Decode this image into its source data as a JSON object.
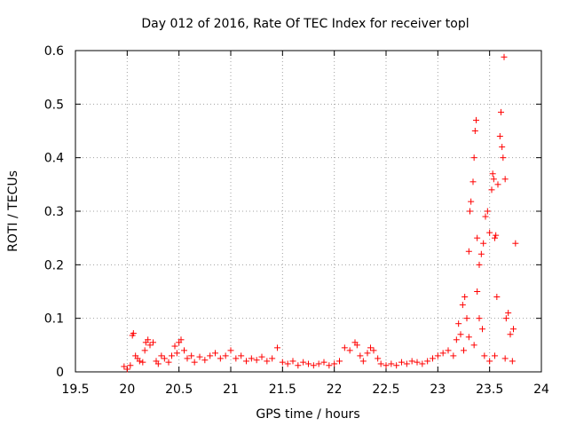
{
  "chart_data": {
    "type": "scatter",
    "title": "Day 012 of 2016, Rate Of TEC Index for receiver topl",
    "xlabel": "GPS time / hours",
    "ylabel": "ROTI / TECUs",
    "xlim": [
      19.5,
      24
    ],
    "ylim": [
      0,
      0.6
    ],
    "xticks": [
      19.5,
      20,
      20.5,
      21,
      21.5,
      22,
      22.5,
      23,
      23.5,
      24
    ],
    "yticks": [
      0,
      0.1,
      0.2,
      0.3,
      0.4,
      0.5,
      0.6
    ],
    "xtick_labels": [
      "19.5",
      "20",
      "20.5",
      "21",
      "21.5",
      "22",
      "22.5",
      "23",
      "23.5",
      "24"
    ],
    "ytick_labels": [
      "0",
      "0.1",
      "0.2",
      "0.3",
      "0.4",
      "0.5",
      "0.6"
    ],
    "grid": true,
    "marker": "+",
    "color": "#ff0000",
    "series": [
      {
        "name": "ROTI",
        "points": [
          [
            19.97,
            0.01
          ],
          [
            20.0,
            0.005
          ],
          [
            20.03,
            0.012
          ],
          [
            20.05,
            0.068
          ],
          [
            20.06,
            0.072
          ],
          [
            20.08,
            0.03
          ],
          [
            20.1,
            0.025
          ],
          [
            20.12,
            0.02
          ],
          [
            20.15,
            0.018
          ],
          [
            20.17,
            0.04
          ],
          [
            20.18,
            0.055
          ],
          [
            20.2,
            0.06
          ],
          [
            20.22,
            0.05
          ],
          [
            20.25,
            0.055
          ],
          [
            20.28,
            0.02
          ],
          [
            20.3,
            0.015
          ],
          [
            20.33,
            0.03
          ],
          [
            20.36,
            0.025
          ],
          [
            20.4,
            0.018
          ],
          [
            20.43,
            0.03
          ],
          [
            20.46,
            0.048
          ],
          [
            20.48,
            0.035
          ],
          [
            20.5,
            0.055
          ],
          [
            20.52,
            0.06
          ],
          [
            20.55,
            0.04
          ],
          [
            20.58,
            0.025
          ],
          [
            20.62,
            0.03
          ],
          [
            20.65,
            0.018
          ],
          [
            20.7,
            0.028
          ],
          [
            20.75,
            0.022
          ],
          [
            20.8,
            0.03
          ],
          [
            20.85,
            0.035
          ],
          [
            20.9,
            0.025
          ],
          [
            20.95,
            0.03
          ],
          [
            21.0,
            0.04
          ],
          [
            21.05,
            0.025
          ],
          [
            21.1,
            0.03
          ],
          [
            21.15,
            0.02
          ],
          [
            21.2,
            0.025
          ],
          [
            21.25,
            0.022
          ],
          [
            21.3,
            0.028
          ],
          [
            21.35,
            0.02
          ],
          [
            21.4,
            0.025
          ],
          [
            21.45,
            0.045
          ],
          [
            21.5,
            0.018
          ],
          [
            21.55,
            0.015
          ],
          [
            21.6,
            0.02
          ],
          [
            21.65,
            0.012
          ],
          [
            21.7,
            0.018
          ],
          [
            21.75,
            0.015
          ],
          [
            21.8,
            0.012
          ],
          [
            21.85,
            0.015
          ],
          [
            21.9,
            0.018
          ],
          [
            21.95,
            0.012
          ],
          [
            22.0,
            0.015
          ],
          [
            22.05,
            0.02
          ],
          [
            22.1,
            0.045
          ],
          [
            22.15,
            0.04
          ],
          [
            22.2,
            0.055
          ],
          [
            22.22,
            0.05
          ],
          [
            22.25,
            0.03
          ],
          [
            22.28,
            0.02
          ],
          [
            22.32,
            0.035
          ],
          [
            22.35,
            0.045
          ],
          [
            22.38,
            0.04
          ],
          [
            22.42,
            0.025
          ],
          [
            22.45,
            0.015
          ],
          [
            22.5,
            0.012
          ],
          [
            22.55,
            0.015
          ],
          [
            22.6,
            0.012
          ],
          [
            22.65,
            0.018
          ],
          [
            22.7,
            0.015
          ],
          [
            22.75,
            0.02
          ],
          [
            22.8,
            0.018
          ],
          [
            22.85,
            0.015
          ],
          [
            22.9,
            0.02
          ],
          [
            22.95,
            0.025
          ],
          [
            23.0,
            0.03
          ],
          [
            23.05,
            0.035
          ],
          [
            23.1,
            0.04
          ],
          [
            23.15,
            0.03
          ],
          [
            23.18,
            0.06
          ],
          [
            23.2,
            0.09
          ],
          [
            23.22,
            0.07
          ],
          [
            23.24,
            0.125
          ],
          [
            23.26,
            0.14
          ],
          [
            23.28,
            0.1
          ],
          [
            23.3,
            0.225
          ],
          [
            23.31,
            0.3
          ],
          [
            23.32,
            0.318
          ],
          [
            23.34,
            0.355
          ],
          [
            23.35,
            0.4
          ],
          [
            23.36,
            0.45
          ],
          [
            23.37,
            0.47
          ],
          [
            23.38,
            0.25
          ],
          [
            23.4,
            0.2
          ],
          [
            23.42,
            0.22
          ],
          [
            23.44,
            0.24
          ],
          [
            23.46,
            0.29
          ],
          [
            23.48,
            0.3
          ],
          [
            23.5,
            0.26
          ],
          [
            23.52,
            0.34
          ],
          [
            23.53,
            0.37
          ],
          [
            23.54,
            0.36
          ],
          [
            23.55,
            0.25
          ],
          [
            23.57,
            0.14
          ],
          [
            23.58,
            0.35
          ],
          [
            23.6,
            0.44
          ],
          [
            23.61,
            0.485
          ],
          [
            23.62,
            0.42
          ],
          [
            23.63,
            0.4
          ],
          [
            23.64,
            0.588
          ],
          [
            23.65,
            0.36
          ],
          [
            23.66,
            0.1
          ],
          [
            23.68,
            0.11
          ],
          [
            23.7,
            0.07
          ],
          [
            23.73,
            0.08
          ],
          [
            23.75,
            0.24
          ],
          [
            23.4,
            0.1
          ],
          [
            23.43,
            0.08
          ],
          [
            23.25,
            0.04
          ],
          [
            23.35,
            0.05
          ],
          [
            23.45,
            0.03
          ],
          [
            23.55,
            0.03
          ],
          [
            23.65,
            0.025
          ],
          [
            23.72,
            0.02
          ],
          [
            23.5,
            0.02
          ],
          [
            23.3,
            0.065
          ],
          [
            23.38,
            0.15
          ],
          [
            23.56,
            0.255
          ]
        ]
      }
    ]
  }
}
